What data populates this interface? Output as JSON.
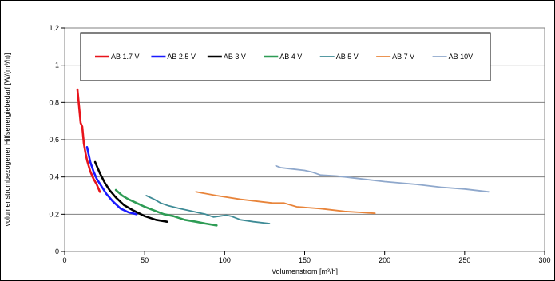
{
  "chart_data": {
    "type": "line",
    "title": "",
    "xlabel": "Volumenstrom [m³/h]",
    "ylabel": "volumenstrombezogener Hilfsenergiebedarf [W/(m³/h)]",
    "xlim": [
      0,
      300
    ],
    "ylim": [
      0,
      1.2
    ],
    "xticks": [
      "0",
      "50",
      "100",
      "150",
      "200",
      "250",
      "300"
    ],
    "yticks": [
      "0",
      "0,2",
      "0,4",
      "0,6",
      "0,8",
      "1",
      "1,2"
    ],
    "grid": "horizontal",
    "legend_position": "top-inside",
    "series": [
      {
        "name": "AB 1.7 V",
        "color": "#e8141b",
        "x": [
          8,
          9,
          10,
          11,
          12,
          13,
          14,
          16,
          18,
          20,
          22
        ],
        "y": [
          0.87,
          0.78,
          0.69,
          0.67,
          0.58,
          0.53,
          0.49,
          0.43,
          0.39,
          0.36,
          0.32
        ]
      },
      {
        "name": "AB 2.5 V",
        "color": "#1a1aff",
        "x": [
          14,
          16,
          18,
          20,
          23,
          26,
          30,
          35,
          40,
          45
        ],
        "y": [
          0.56,
          0.48,
          0.43,
          0.39,
          0.35,
          0.31,
          0.27,
          0.23,
          0.21,
          0.2
        ]
      },
      {
        "name": "AB 3 V",
        "color": "#000000",
        "x": [
          19,
          22,
          25,
          28,
          32,
          37,
          43,
          50,
          57,
          64
        ],
        "y": [
          0.48,
          0.42,
          0.37,
          0.33,
          0.29,
          0.25,
          0.22,
          0.19,
          0.17,
          0.16
        ]
      },
      {
        "name": "AB 4 V",
        "color": "#2e9c55",
        "x": [
          32,
          36,
          40,
          45,
          50,
          56,
          62,
          68,
          75,
          82,
          88,
          95
        ],
        "y": [
          0.33,
          0.3,
          0.28,
          0.26,
          0.24,
          0.22,
          0.2,
          0.19,
          0.17,
          0.16,
          0.15,
          0.14
        ]
      },
      {
        "name": "AB 5 V",
        "color": "#3e8b96",
        "x": [
          51,
          56,
          60,
          65,
          72,
          80,
          88,
          93,
          97,
          101,
          104,
          110,
          118,
          128
        ],
        "y": [
          0.3,
          0.28,
          0.26,
          0.245,
          0.23,
          0.215,
          0.2,
          0.185,
          0.19,
          0.195,
          0.19,
          0.17,
          0.16,
          0.15
        ]
      },
      {
        "name": "AB 7 V",
        "color": "#e8843a",
        "x": [
          82,
          95,
          110,
          125,
          130,
          137,
          145,
          160,
          175,
          185,
          194
        ],
        "y": [
          0.32,
          0.3,
          0.28,
          0.265,
          0.26,
          0.26,
          0.24,
          0.23,
          0.215,
          0.21,
          0.205
        ]
      },
      {
        "name": "AB 10V",
        "color": "#8fa8cc",
        "x": [
          132,
          135,
          140,
          150,
          155,
          160,
          170,
          180,
          200,
          220,
          235,
          250,
          265
        ],
        "y": [
          0.46,
          0.45,
          0.445,
          0.435,
          0.425,
          0.41,
          0.405,
          0.395,
          0.375,
          0.36,
          0.345,
          0.335,
          0.32
        ]
      }
    ]
  }
}
